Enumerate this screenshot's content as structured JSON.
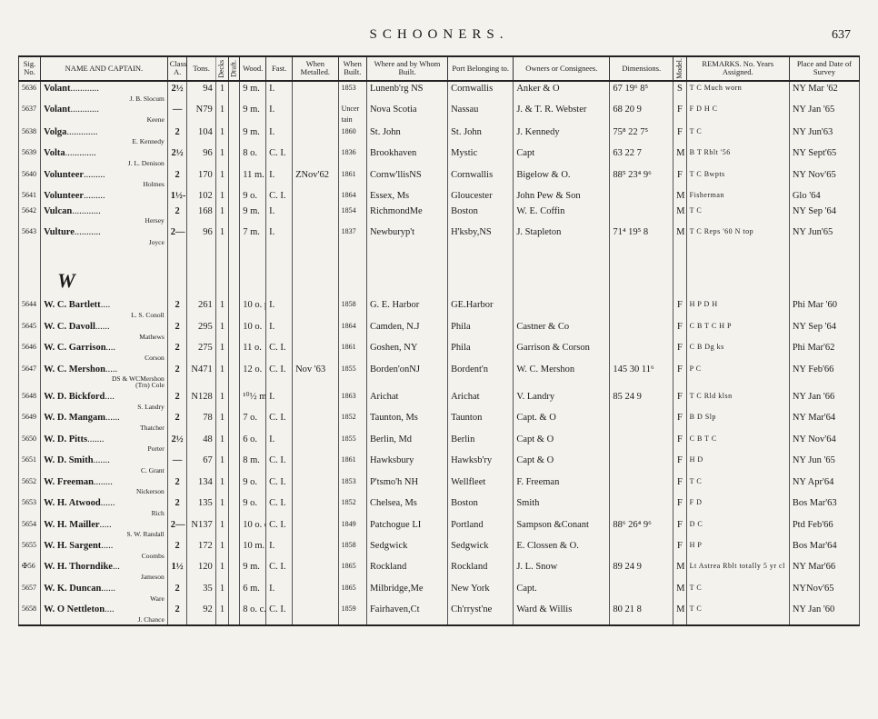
{
  "page": {
    "title": "SCHOONERS.",
    "number": "637"
  },
  "columns": [
    "Sig.\nNo.",
    "NAME AND CAPTAIN.",
    "Class\nA.",
    "Tons.",
    "Decks",
    "Draft.",
    "Wood.",
    "Fast.",
    "When\nMetalled.",
    "When\nBuilt.",
    "Where and by\nWhom Built.",
    "Port\nBelonging to.",
    "Owners or Consignees.",
    "Dimensions.",
    "Model.",
    "REMARKS.\nNo. Years Assigned.",
    "Place and\nDate of Survey"
  ],
  "section_letter": "W",
  "rows": [
    {
      "sig": "5636",
      "name": "Volant",
      "cap": "J. B. Slocum",
      "class": "2½",
      "tons": "94",
      "decks": "1",
      "draft": "",
      "wood": "9 m.",
      "fast": "I.",
      "met": "",
      "built": "1853",
      "where": "Lunenb'rg NS",
      "port": "Cornwallis",
      "owners": "Anker & O",
      "dims": "67 19⁶ 8⁵",
      "model": "S",
      "remarks": "T C  Much worn",
      "place": "NY Mar '62"
    },
    {
      "sig": "5637",
      "name": "Volant",
      "cap": "Keene",
      "class": "—",
      "tons": "N79",
      "decks": "1",
      "draft": "",
      "wood": "9 m.",
      "fast": "I.",
      "met": "",
      "built": "Uncer\ntain",
      "where": "Nova Scotia",
      "port": "Nassau",
      "owners": "J. & T. R. Webster",
      "dims": "68 20  9",
      "model": "F",
      "remarks": "F D  H C",
      "place": "NY Jan '65"
    },
    {
      "sig": "5638",
      "name": "Volga",
      "cap": "E. Kennedy",
      "class": "2",
      "tons": "104",
      "decks": "1",
      "draft": "",
      "wood": "9 m.",
      "fast": "I.",
      "met": "",
      "built": "1860",
      "where": "St. John",
      "port": "St. John",
      "owners": "J. Kennedy",
      "dims": "75⁸ 22  7⁵",
      "model": "F",
      "remarks": "T C",
      "place": "NY Jun'63"
    },
    {
      "sig": "5639",
      "name": "Volta",
      "cap": "J. L. Denison",
      "class": "2½",
      "tons": "96",
      "decks": "1",
      "draft": "",
      "wood": "8 o.",
      "fast": "C. I.",
      "met": "",
      "built": "1836",
      "where": "Brookhaven",
      "port": "Mystic",
      "owners": "Capt",
      "dims": "63 22  7",
      "model": "M",
      "remarks": "B T  Rblt '56",
      "place": "NY Sept'65"
    },
    {
      "sig": "5640",
      "name": "Volunteer",
      "cap": "Holmes",
      "class": "2",
      "tons": "170",
      "decks": "1",
      "draft": "",
      "wood": "11 m.",
      "fast": "I.",
      "met": "ZNov'62",
      "built": "1861",
      "where": "Cornw'llisNS",
      "port": "Cornwallis",
      "owners": "Bigelow & O.",
      "dims": "88⁵ 23⁴ 9⁶",
      "model": "F",
      "remarks": "T C  Bwpts",
      "place": "NY Nov'65"
    },
    {
      "sig": "5641",
      "name": "Volunteer",
      "cap": "",
      "class": "1½-",
      "tons": "102",
      "decks": "1",
      "draft": "",
      "wood": "9 o.",
      "fast": "C. I.",
      "met": "",
      "built": "1864",
      "where": "Essex, Ms",
      "port": "Gloucester",
      "owners": "John Pew & Son",
      "dims": "",
      "model": "M",
      "remarks": "Fisherman",
      "place": "Glo '64"
    },
    {
      "sig": "5642",
      "name": "Vulcan",
      "cap": "Hersey",
      "class": "2",
      "tons": "168",
      "decks": "1",
      "draft": "",
      "wood": "9 m.",
      "fast": "I.",
      "met": "",
      "built": "1854",
      "where": "RichmondMe",
      "port": "Boston",
      "owners": "W. E. Coffin",
      "dims": "",
      "model": "M",
      "remarks": "T C",
      "place": "NY Sep '64"
    },
    {
      "sig": "5643",
      "name": "Vulture",
      "cap": "Joyce",
      "class": "2—",
      "tons": "96",
      "decks": "1",
      "draft": "",
      "wood": "7 m.",
      "fast": "I.",
      "met": "",
      "built": "1837",
      "where": "Newburyp't",
      "port": "H'ksby,NS",
      "owners": "J. Stapleton",
      "dims": "71⁴ 19⁵ 8",
      "model": "M",
      "remarks": "T C  Reps '60  N top",
      "place": "NY Jun'65"
    },
    {
      "sig": "5644",
      "name": "W. C. Bartlett",
      "cap": "L. S. Conoll",
      "class": "2",
      "tons": "261",
      "decks": "1",
      "draft": "",
      "wood": "10 o. p.",
      "fast": "I.",
      "met": "",
      "built": "1858",
      "where": "G. E. Harbor",
      "port": "GE.Harbor",
      "owners": "",
      "dims": "",
      "model": "F",
      "remarks": "H P  D H",
      "place": "Phi Mar '60"
    },
    {
      "sig": "5645",
      "name": "W. C. Davoll",
      "cap": "Mathews",
      "class": "2",
      "tons": "295",
      "decks": "1",
      "draft": "",
      "wood": "10 o.",
      "fast": "I.",
      "met": "",
      "built": "1864",
      "where": "Camden, N.J",
      "port": "Phila",
      "owners": "Castner & Co",
      "dims": "",
      "model": "F",
      "remarks": "C B T C H P",
      "place": "NY Sep '64"
    },
    {
      "sig": "5646",
      "name": "W. C. Garrison",
      "cap": "Corson",
      "class": "2",
      "tons": "275",
      "decks": "1",
      "draft": "",
      "wood": "11 o.",
      "fast": "C. I.",
      "met": "",
      "built": "1861",
      "where": "Goshen, NY",
      "port": "Phila",
      "owners": "Garrison & Corson",
      "dims": "",
      "model": "F",
      "remarks": "C B  Dg ks",
      "place": "Phi Mar'62"
    },
    {
      "sig": "5647",
      "name": "W. C. Mershon",
      "cap": "(Trn)        Cole",
      "class": "2",
      "tons": "N471",
      "decks": "1",
      "draft": "",
      "wood": "12 o.",
      "fast": "C. I.",
      "met": "Nov '63",
      "built": "1855",
      "where": "Borden'onNJ",
      "port": "Bordent'n",
      "owners": "W. C. Mershon",
      "dims": "145 30 11⁶",
      "model": "F",
      "remarks": "P C",
      "place": "NY Feb'66",
      "extra": "DS & WCMershon"
    },
    {
      "sig": "5648",
      "name": "W. D. Bickford",
      "cap": "S. Landry",
      "class": "2",
      "tons": "N128",
      "decks": "1",
      "draft": "",
      "wood": "¹⁰½ m.",
      "fast": "I.",
      "met": "",
      "built": "1863",
      "where": "Arichat",
      "port": "Arichat",
      "owners": "V. Landry",
      "dims": "85 24  9",
      "model": "F",
      "remarks": "T C  Rld klsn",
      "place": "NY Jan '66"
    },
    {
      "sig": "5649",
      "name": "W. D. Mangam",
      "cap": "Thatcher",
      "class": "2",
      "tons": "78",
      "decks": "1",
      "draft": "",
      "wood": "7 o.",
      "fast": "C. I.",
      "met": "",
      "built": "1852",
      "where": "Taunton, Ms",
      "port": "Taunton",
      "owners": "Capt. & O",
      "dims": "",
      "model": "F",
      "remarks": "B D  Slp",
      "place": "NY Mar'64"
    },
    {
      "sig": "5650",
      "name": "W. D. Pitts",
      "cap": "Porter",
      "class": "2½",
      "tons": "48",
      "decks": "1",
      "draft": "",
      "wood": "6 o.",
      "fast": "I.",
      "met": "",
      "built": "1855",
      "where": "Berlin, Md",
      "port": "Berlin",
      "owners": "Capt & O",
      "dims": "",
      "model": "F",
      "remarks": "C B  T C",
      "place": "NY Nov'64"
    },
    {
      "sig": "5651",
      "name": "W. D. Smith",
      "cap": "C. Grant",
      "class": "—",
      "tons": "67",
      "decks": "1",
      "draft": "",
      "wood": "8 m.",
      "fast": "C. I.",
      "met": "",
      "built": "1861",
      "where": "Hawksbury",
      "port": "Hawksb'ry",
      "owners": "Capt & O",
      "dims": "",
      "model": "F",
      "remarks": "H D",
      "place": "NY Jun '65"
    },
    {
      "sig": "5652",
      "name": "W. Freeman",
      "cap": "Nickerson",
      "class": "2",
      "tons": "134",
      "decks": "1",
      "draft": "",
      "wood": "9 o.",
      "fast": "C. I.",
      "met": "",
      "built": "1853",
      "where": "P'tsmo'h NH",
      "port": "Wellfleet",
      "owners": "F. Freeman",
      "dims": "",
      "model": "F",
      "remarks": "T C",
      "place": "NY Apr'64"
    },
    {
      "sig": "5653",
      "name": "W. H. Atwood",
      "cap": "Rich",
      "class": "2",
      "tons": "135",
      "decks": "1",
      "draft": "",
      "wood": "9 o.",
      "fast": "C. I.",
      "met": "",
      "built": "1852",
      "where": "Chelsea, Ms",
      "port": "Boston",
      "owners": "Smith",
      "dims": "",
      "model": "F",
      "remarks": "F D",
      "place": "Bos Mar'63"
    },
    {
      "sig": "5654",
      "name": "W. H. Mailler",
      "cap": "S. W. Randall",
      "class": "2—",
      "tons": "N137",
      "decks": "1",
      "draft": "",
      "wood": "10 o. c.",
      "fast": "C. I.",
      "met": "",
      "built": "1849",
      "where": "Patchogue LI",
      "port": "Portland",
      "owners": "Sampson &Conant",
      "dims": "88⁶ 26⁴ 9⁶",
      "model": "F",
      "remarks": "D C",
      "place": "Ptd Feb'66"
    },
    {
      "sig": "5655",
      "name": "W. H. Sargent",
      "cap": "Coombs",
      "class": "2",
      "tons": "172",
      "decks": "1",
      "draft": "",
      "wood": "10 m.",
      "fast": "I.",
      "met": "",
      "built": "1858",
      "where": "Sedgwick",
      "port": "Sedgwick",
      "owners": "E. Clossen & O.",
      "dims": "",
      "model": "F",
      "remarks": "H P",
      "place": "Bos Mar'64"
    },
    {
      "sig": "✠56",
      "name": "W. H. Thorndike",
      "cap": "Jameson",
      "class": "1½",
      "tons": "120",
      "decks": "1",
      "draft": "",
      "wood": "9 m.",
      "fast": "C. I.",
      "met": "",
      "built": "1865",
      "where": "Rockland",
      "port": "Rockland",
      "owners": "J. L. Snow",
      "dims": "89 24  9",
      "model": "M",
      "remarks": "Lt Astrea Rblt totally 5 yr cl",
      "place": "NY Mar'66"
    },
    {
      "sig": "5657",
      "name": "W. K. Duncan",
      "cap": "Ware",
      "class": "2",
      "tons": "35",
      "decks": "1",
      "draft": "",
      "wood": "6 m.",
      "fast": "I.",
      "met": "",
      "built": "1865",
      "where": "Milbridge,Me",
      "port": "New York",
      "owners": "Capt.",
      "dims": "",
      "model": "M",
      "remarks": "T C",
      "place": "NYNov'65"
    },
    {
      "sig": "5658",
      "name": "W. O Nettleton",
      "cap": "J. Chance",
      "class": "2",
      "tons": "92",
      "decks": "1",
      "draft": "",
      "wood": "8 o. c.",
      "fast": "C. I.",
      "met": "",
      "built": "1859",
      "where": "Fairhaven,Ct",
      "port": "Ch'rryst'ne",
      "owners": "Ward & Willis",
      "dims": "80 21  8",
      "model": "M",
      "remarks": "T C",
      "place": "NY Jan '60"
    }
  ]
}
